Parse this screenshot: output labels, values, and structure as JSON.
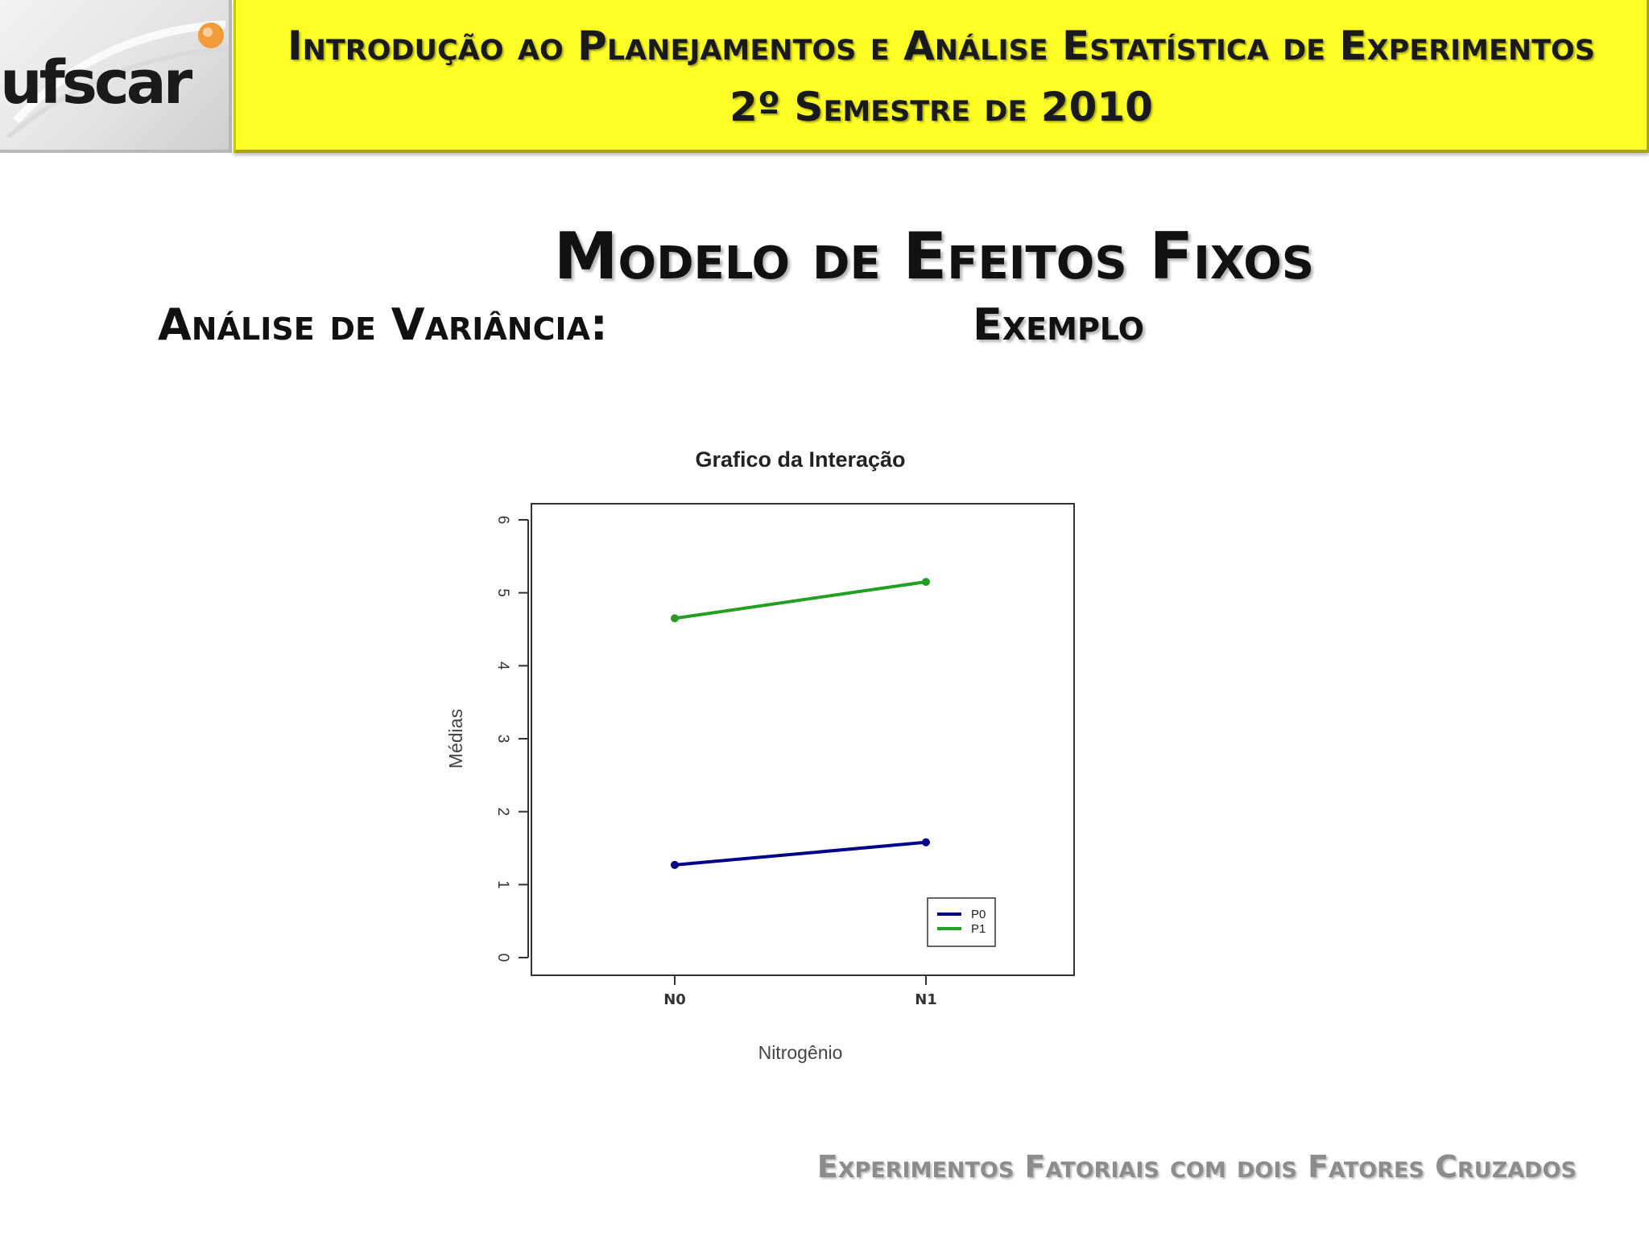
{
  "header": {
    "logo_text": "ufscar",
    "line1": "Introdução ao Planejamentos e Análise Estatística de Experimentos",
    "line2": "2º Semestre de 2010"
  },
  "slide": {
    "title": "Modelo de Efeitos Fixos",
    "subtitle_left": "Análise de Variância:",
    "subtitle_right": "Exemplo",
    "footer": "Experimentos Fatoriais com dois Fatores Cruzados"
  },
  "colors": {
    "header_band": "#ffff26",
    "series_p0": "#00008b",
    "series_p1": "#22a022"
  },
  "chart_data": {
    "type": "line",
    "title": "Grafico da Interação",
    "xlabel": "Nitrogênio",
    "ylabel": "Médias",
    "categories": [
      "N0",
      "N1"
    ],
    "ylim": [
      0,
      6
    ],
    "yticks": [
      "0",
      "1",
      "2",
      "3",
      "4",
      "5",
      "6"
    ],
    "grid": false,
    "legend_position": "bottom-right",
    "series": [
      {
        "name": "P0",
        "color": "#00008b",
        "values": [
          1.27,
          1.58
        ]
      },
      {
        "name": "P1",
        "color": "#22a022",
        "values": [
          4.65,
          5.15
        ]
      }
    ]
  }
}
